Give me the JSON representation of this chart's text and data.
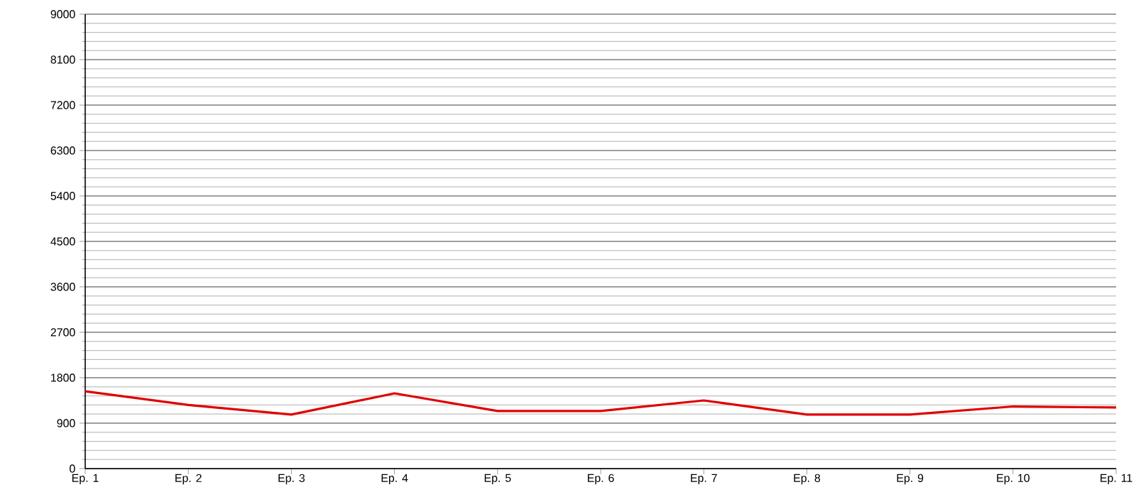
{
  "chart_data": {
    "type": "line",
    "categories": [
      "Ep. 1",
      "Ep. 2",
      "Ep. 3",
      "Ep. 4",
      "Ep. 5",
      "Ep. 6",
      "Ep. 7",
      "Ep. 8",
      "Ep. 9",
      "Ep. 10",
      "Ep. 11"
    ],
    "values": [
      1530,
      1260,
      1070,
      1490,
      1140,
      1140,
      1350,
      1070,
      1070,
      1230,
      1210
    ],
    "color": "#e00000",
    "ylim": [
      0,
      9000
    ],
    "yticks": [
      0,
      900,
      1800,
      2700,
      3600,
      4500,
      5400,
      6300,
      7200,
      8100,
      9000
    ],
    "grid": "y",
    "marker": "none",
    "line_style": "solid"
  }
}
